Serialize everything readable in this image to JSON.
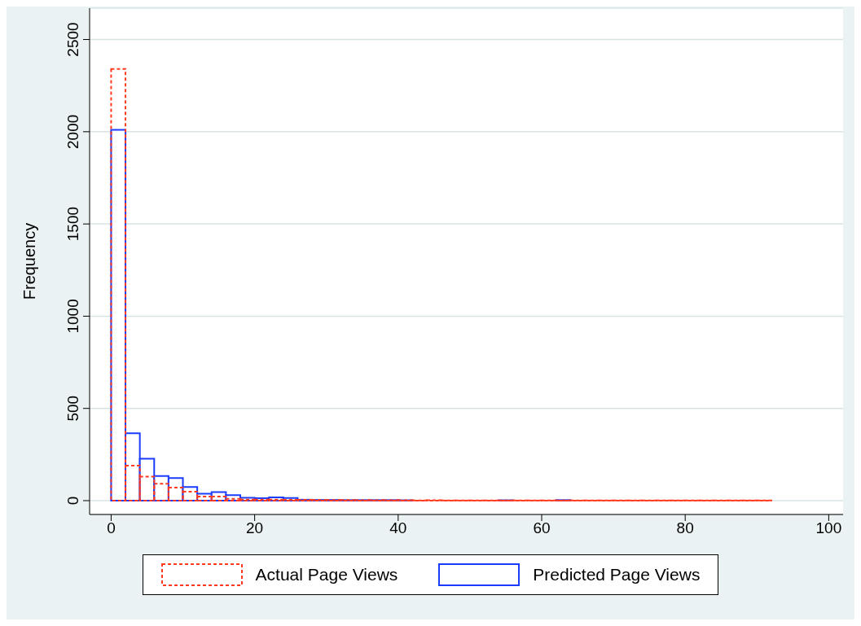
{
  "chart_data": {
    "type": "histogram",
    "ylabel": "Frequency",
    "bins": [
      0,
      2,
      4,
      6,
      8,
      10,
      12,
      14,
      16,
      18,
      20,
      22,
      24,
      26,
      28,
      30,
      32,
      34,
      36,
      38,
      40,
      42,
      44,
      46,
      48,
      50,
      52,
      54,
      56,
      58,
      60,
      62,
      64,
      66,
      68,
      70,
      72,
      74,
      76,
      78,
      80,
      82,
      84,
      86,
      88,
      90,
      92
    ],
    "series": [
      {
        "name": "Predicted Page Views",
        "color": "#1a3cff",
        "line_style": "solid",
        "values": [
          2010,
          365,
          227,
          134,
          122,
          74,
          37,
          46,
          30,
          16,
          13,
          18,
          14,
          5,
          4,
          4,
          3,
          3,
          3,
          3,
          2,
          0,
          0,
          0,
          0,
          0,
          0,
          2,
          0,
          0,
          0,
          3,
          0,
          0,
          0,
          0,
          0,
          0,
          0,
          0,
          0,
          0,
          0,
          0,
          0,
          0
        ]
      },
      {
        "name": "Actual Page Views",
        "color": "#ff3b1f",
        "line_style": "dashed",
        "values": [
          2340,
          190,
          130,
          92,
          71,
          49,
          22,
          22,
          10,
          6,
          5,
          6,
          4,
          4,
          3,
          3,
          3,
          2,
          2,
          2,
          2,
          1,
          2,
          1,
          1,
          1,
          1,
          1,
          1,
          1,
          1,
          1,
          1,
          1,
          1,
          1,
          1,
          1,
          1,
          1,
          1,
          1,
          1,
          1,
          1,
          1
        ]
      }
    ],
    "xlim": [
      -3,
      102
    ],
    "xticks": [
      0,
      20,
      40,
      60,
      80,
      100
    ],
    "ylim": [
      -75,
      2670
    ],
    "yticks": [
      0,
      500,
      1000,
      1500,
      2000,
      2500
    ],
    "grid": "y",
    "legend": "bottom"
  }
}
